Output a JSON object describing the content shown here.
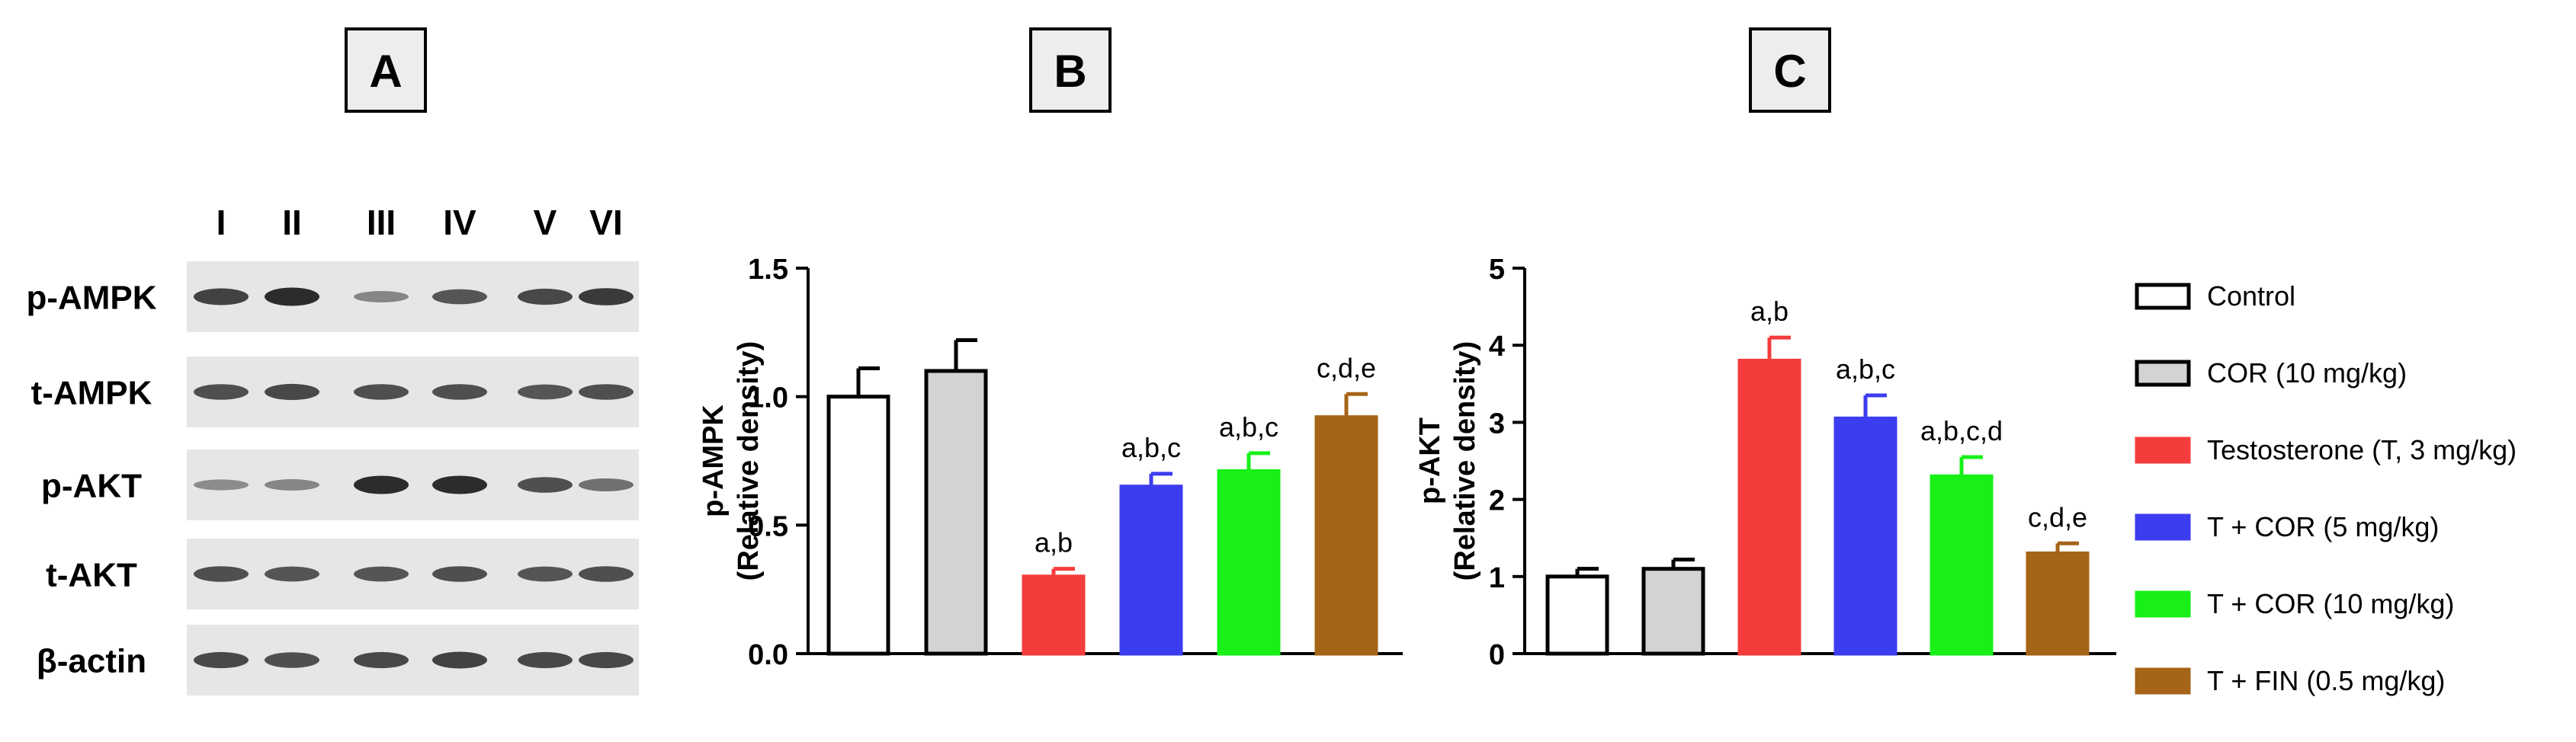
{
  "panels": [
    {
      "label": "A"
    },
    {
      "label": "B"
    },
    {
      "label": "C"
    }
  ],
  "blot": {
    "lanes": [
      "I",
      "II",
      "III",
      "IV",
      "V",
      "VI"
    ],
    "rows": [
      {
        "name": "p-AMPK",
        "intensities": [
          0.85,
          1.0,
          0.35,
          0.7,
          0.8,
          0.9
        ]
      },
      {
        "name": "t-AMPK",
        "intensities": [
          0.75,
          0.8,
          0.75,
          0.75,
          0.7,
          0.75
        ]
      },
      {
        "name": "p-AKT",
        "intensities": [
          0.3,
          0.35,
          1.0,
          1.0,
          0.75,
          0.5
        ]
      },
      {
        "name": "t-AKT",
        "intensities": [
          0.75,
          0.7,
          0.7,
          0.75,
          0.7,
          0.75
        ]
      },
      {
        "name": "β-actin",
        "intensities": [
          0.8,
          0.75,
          0.8,
          0.85,
          0.8,
          0.8
        ]
      }
    ]
  },
  "colors": {
    "control": "#ffffff",
    "cor10": "#d3d3d3",
    "testosterone": "#f53c3c",
    "t_cor5": "#3c3cf0",
    "t_cor10": "#18f018",
    "t_fin": "#a56417",
    "axis": "#000000",
    "blot_bg": "#e6e6e6",
    "band": "#222222"
  },
  "legend": [
    {
      "label": "Control",
      "color_key": "control"
    },
    {
      "label": "COR (10 mg/kg)",
      "color_key": "cor10"
    },
    {
      "label": "Testosterone (T, 3 mg/kg)",
      "color_key": "testosterone"
    },
    {
      "label": "T + COR (5 mg/kg)",
      "color_key": "t_cor5"
    },
    {
      "label": "T + COR (10 mg/kg)",
      "color_key": "t_cor10"
    },
    {
      "label": "T + FIN (0.5 mg/kg)",
      "color_key": "t_fin"
    }
  ],
  "chart_data": [
    {
      "type": "bar",
      "title": "",
      "ylabel": "p-AMPK",
      "ylabel2": "(Relative density)",
      "xlabel": "",
      "ylim": [
        0,
        1.5
      ],
      "yticks": [
        0.0,
        0.5,
        1.0,
        1.5
      ],
      "yticklabels": [
        "0.0",
        "0.5",
        "1.0",
        "1.5"
      ],
      "categories": [
        "Control",
        "COR (10 mg/kg)",
        "Testosterone (T, 3 mg/kg)",
        "T + COR (5 mg/kg)",
        "T + COR (10 mg/kg)",
        "T + FIN (0.5 mg/kg)"
      ],
      "values": [
        1.0,
        1.1,
        0.3,
        0.65,
        0.71,
        0.92
      ],
      "errors": [
        0.11,
        0.12,
        0.03,
        0.05,
        0.07,
        0.09
      ],
      "annotations": [
        "",
        "",
        "a,b",
        "a,b,c",
        "a,b,c",
        "c,d,e"
      ]
    },
    {
      "type": "bar",
      "title": "",
      "ylabel": "p-AKT",
      "ylabel2": "(Relative density)",
      "xlabel": "",
      "ylim": [
        0,
        5
      ],
      "yticks": [
        0,
        1,
        2,
        3,
        4,
        5
      ],
      "yticklabels": [
        "0",
        "1",
        "2",
        "3",
        "4",
        "5"
      ],
      "categories": [
        "Control",
        "COR (10 mg/kg)",
        "Testosterone (T, 3 mg/kg)",
        "T + COR (5 mg/kg)",
        "T + COR (10 mg/kg)",
        "T + FIN (0.5 mg/kg)"
      ],
      "values": [
        1.0,
        1.1,
        3.8,
        3.05,
        2.3,
        1.3
      ],
      "errors": [
        0.1,
        0.12,
        0.3,
        0.3,
        0.25,
        0.13
      ],
      "annotations": [
        "",
        "",
        "a,b",
        "a,b,c",
        "a,b,c,d",
        "c,d,e"
      ]
    }
  ]
}
